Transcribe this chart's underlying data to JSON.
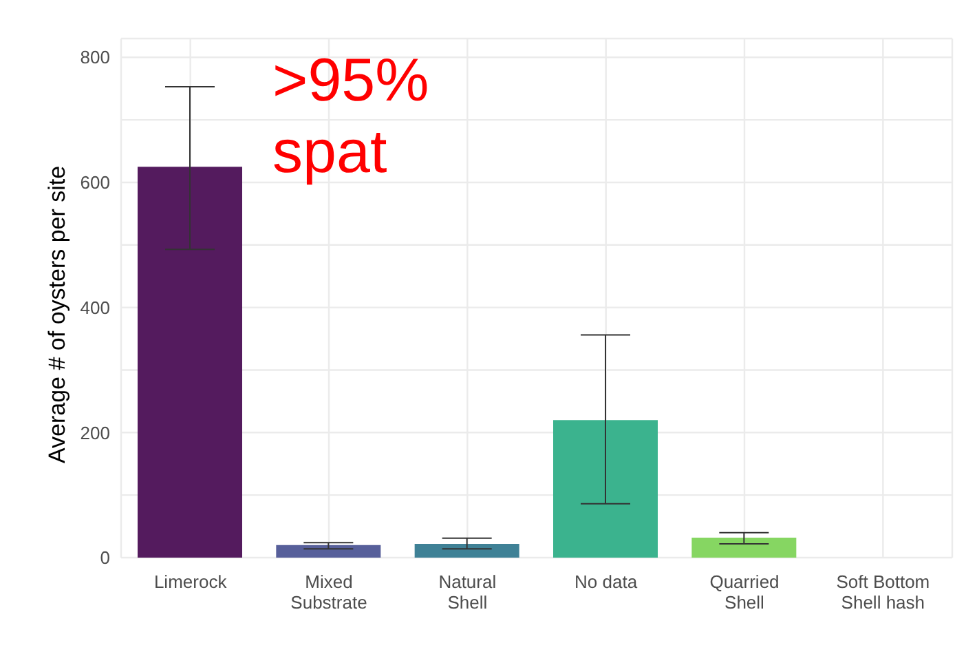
{
  "chart_data": {
    "type": "bar",
    "ylabel": "Average # of oysters per site",
    "categories": [
      "Limerock",
      "Mixed\nSubstrate",
      "Natural\nShell",
      "No data",
      "Quarried\nShell",
      "Soft Bottom\nShell hash"
    ],
    "values": [
      625,
      20,
      22,
      220,
      32,
      0
    ],
    "errors": [
      [
        493,
        753
      ],
      [
        14,
        24
      ],
      [
        14,
        31
      ],
      [
        86,
        356
      ],
      [
        22,
        40
      ],
      [
        0,
        0
      ]
    ],
    "colors": [
      "#541b5e",
      "#575f9a",
      "#3f8196",
      "#3bb38e",
      "#86d662",
      "#fde725"
    ],
    "ylim": [
      0,
      830
    ],
    "yticks": [
      0,
      {
        "value": 100,
        "label": null
      },
      200,
      {
        "value": 300,
        "label": null
      },
      400,
      {
        "value": 500,
        "label": null
      },
      600,
      {
        "value": 700,
        "label": null
      },
      800
    ],
    "grid": true,
    "annotations": [
      ">95%\nspat"
    ]
  }
}
